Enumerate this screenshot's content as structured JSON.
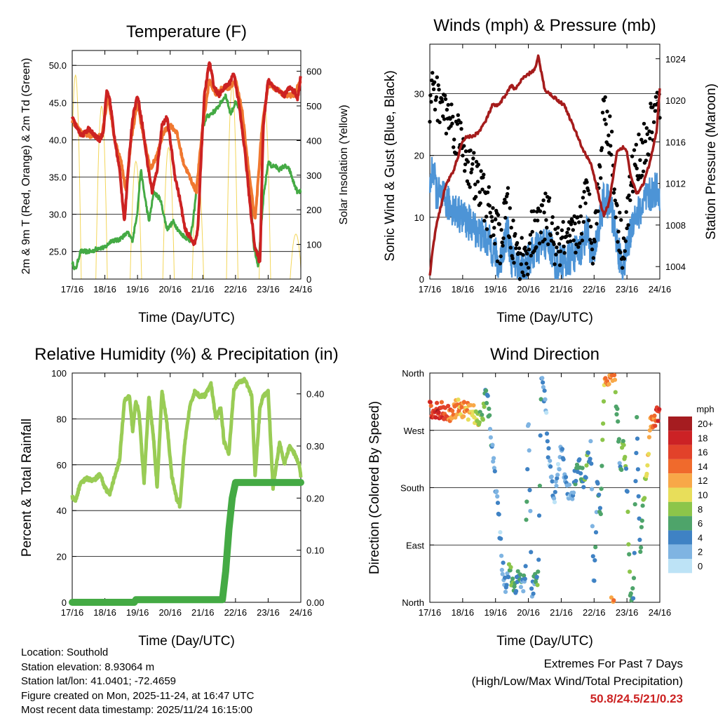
{
  "chart_data": [
    {
      "id": "temperature",
      "type": "line",
      "title": "Temperature (F)",
      "xlabel": "Time (Day/UTC)",
      "ylabel": "2m & 9m T (Red, Orange) & 2m Td (Green)",
      "ylabel_right": "Solar Insolation (Yellow)",
      "x_ticks": [
        "17/16",
        "18/16",
        "19/16",
        "20/16",
        "21/16",
        "22/16",
        "23/16",
        "24/16"
      ],
      "y_ticks": [
        "25.0",
        "30.0",
        "35.0",
        "40.0",
        "45.0",
        "50.0"
      ],
      "y_right_ticks": [
        "0",
        "100",
        "200",
        "300",
        "400",
        "500",
        "600"
      ],
      "ylim": [
        21.3,
        52
      ],
      "y_right_lim": [
        0,
        660
      ],
      "xlim": [
        0,
        7
      ],
      "series": [
        {
          "name": "2m T",
          "color": "#cc2222",
          "x": [
            0,
            0.15,
            0.3,
            0.5,
            0.7,
            0.85,
            0.95,
            1.05,
            1.15,
            1.3,
            1.45,
            1.6,
            1.75,
            1.85,
            2.0,
            2.15,
            2.3,
            2.45,
            2.6,
            2.75,
            2.9,
            3.0,
            3.15,
            3.3,
            3.45,
            3.6,
            3.75,
            3.85,
            3.95,
            4.05,
            4.2,
            4.35,
            4.5,
            4.65,
            4.8,
            4.95,
            5.1,
            5.3,
            5.45,
            5.6,
            5.75,
            5.85,
            6.0,
            6.1,
            6.2,
            6.35,
            6.5,
            6.65,
            6.8,
            6.9,
            7.0
          ],
          "values": [
            43,
            41.5,
            40.5,
            41.5,
            40.5,
            40,
            41,
            46.5,
            45.5,
            40,
            36,
            29,
            38,
            43,
            46,
            42,
            37,
            33,
            36,
            42,
            43,
            40,
            35,
            32,
            28,
            27,
            26,
            28,
            38,
            46,
            50.5,
            47,
            46,
            47,
            47.5,
            49,
            45,
            38,
            31,
            25.5,
            23.5,
            42,
            48,
            47.5,
            47,
            46.5,
            46,
            47,
            46.5,
            45.5,
            48.5
          ]
        },
        {
          "name": "9m T",
          "color": "#f07830",
          "x": [
            0,
            0.3,
            0.6,
            0.9,
            1.1,
            1.3,
            1.5,
            1.65,
            1.8,
            2.0,
            2.2,
            2.4,
            2.6,
            2.8,
            3.0,
            3.2,
            3.4,
            3.6,
            3.8,
            4.0,
            4.2,
            4.4,
            4.6,
            4.8,
            5.0,
            5.2,
            5.4,
            5.6,
            5.8,
            6.0,
            6.2,
            6.5,
            6.8,
            7.0
          ],
          "values": [
            42.5,
            41,
            40.5,
            40.5,
            46,
            40,
            37,
            33,
            40,
            45,
            40,
            36,
            38,
            41,
            42,
            41,
            37,
            35,
            33,
            42,
            48,
            46,
            47,
            47,
            48,
            44,
            36,
            29,
            41,
            47.5,
            47,
            46,
            46,
            48
          ]
        },
        {
          "name": "2m Td",
          "color": "#44aa44",
          "x": [
            0,
            0.1,
            0.25,
            0.4,
            0.6,
            0.8,
            1.0,
            1.2,
            1.4,
            1.55,
            1.7,
            1.85,
            2.0,
            2.1,
            2.2,
            2.35,
            2.5,
            2.7,
            2.9,
            3.1,
            3.3,
            3.45,
            3.6,
            3.7,
            3.8,
            3.9,
            4.0,
            4.1,
            4.25,
            4.4,
            4.55,
            4.7,
            4.85,
            5.0,
            5.15,
            5.3,
            5.45,
            5.55,
            5.7,
            5.85,
            6.0,
            6.1,
            6.2,
            6.35,
            6.5,
            6.65,
            6.8,
            6.9,
            7.0
          ],
          "values": [
            23.5,
            22.5,
            25,
            25,
            25,
            25.5,
            25.5,
            26.5,
            26.5,
            27,
            27.5,
            26.5,
            30.5,
            36,
            33,
            29,
            33,
            32,
            28,
            29,
            27.5,
            27,
            26.5,
            29,
            33,
            37,
            41.5,
            43,
            43.5,
            44,
            45,
            46,
            43.5,
            45,
            44,
            38,
            34,
            26,
            23,
            32,
            37,
            36.5,
            36.5,
            36,
            36.5,
            36,
            34,
            33,
            33
          ]
        },
        {
          "name": "Solar Insolation",
          "color": "#f3d65a",
          "axis": "right",
          "peaks_x": [
            0.1,
            0.9,
            1.95,
            2.95,
            3.85,
            4.9,
            5.9,
            6.85
          ],
          "values": [
            590,
            500,
            340,
            380,
            310,
            560,
            500,
            130
          ]
        }
      ]
    },
    {
      "id": "winds",
      "type": "scatter",
      "title": "Winds (mph) & Pressure (mb)",
      "xlabel": "Time (Day/UTC)",
      "ylabel": "Sonic Wind & Gust (Blue, Black)",
      "ylabel_right": "Station Pressure (Maroon)",
      "x_ticks": [
        "17/16",
        "18/16",
        "19/16",
        "20/16",
        "21/16",
        "22/16",
        "23/16",
        "24/16"
      ],
      "y_ticks": [
        "0",
        "10",
        "20",
        "30"
      ],
      "y_right_ticks": [
        "1004",
        "1008",
        "1012",
        "1016",
        "1020",
        "1024"
      ],
      "ylim": [
        0,
        38
      ],
      "y_right_lim": [
        1002.8,
        1025.4
      ],
      "xlim": [
        0,
        7
      ],
      "series": [
        {
          "name": "Gust",
          "color": "#000000",
          "x": [
            0,
            0.1,
            0.2,
            0.4,
            0.6,
            0.8,
            1.0,
            1.2,
            1.4,
            1.6,
            1.8,
            2.0,
            2.1,
            2.2,
            2.35,
            2.5,
            2.7,
            2.9,
            3.1,
            3.3,
            3.5,
            3.7,
            3.85,
            4.0,
            4.2,
            4.4,
            4.6,
            4.8,
            4.95,
            5.1,
            5.2,
            5.3,
            5.5,
            5.6,
            5.75,
            5.9,
            6.05,
            6.2,
            6.4,
            6.6,
            6.8,
            6.95,
            7.0
          ],
          "values": [
            26,
            32,
            29,
            28,
            26,
            24,
            22,
            18,
            16,
            14,
            11,
            8,
            6,
            7,
            12,
            6,
            4,
            3,
            7,
            8,
            10,
            9,
            4,
            6,
            5,
            7,
            9,
            14,
            6,
            12,
            20,
            28,
            23,
            16,
            8,
            5,
            12,
            18,
            20,
            22,
            26,
            28,
            29
          ]
        },
        {
          "name": "Wind",
          "color": "#4d94d6",
          "x": [
            0,
            0.1,
            0.2,
            0.4,
            0.6,
            0.8,
            1.0,
            1.2,
            1.4,
            1.6,
            1.8,
            2.0,
            2.1,
            2.2,
            2.35,
            2.5,
            2.7,
            2.9,
            3.1,
            3.3,
            3.5,
            3.7,
            3.85,
            4.0,
            4.2,
            4.4,
            4.6,
            4.8,
            4.95,
            5.1,
            5.2,
            5.3,
            5.5,
            5.6,
            5.75,
            5.9,
            6.05,
            6.2,
            6.4,
            6.6,
            6.8,
            6.95,
            7.0
          ],
          "values": [
            15,
            18,
            14,
            13,
            12,
            11,
            10,
            9,
            8,
            7,
            6,
            4,
            2,
            4,
            8,
            3,
            2,
            2,
            4,
            5,
            6,
            5,
            2,
            3,
            3,
            4,
            5,
            8,
            3,
            7,
            10,
            13,
            12,
            9,
            4,
            2,
            6,
            10,
            11,
            13,
            14,
            15,
            12
          ]
        },
        {
          "name": "Station Pressure",
          "color": "#a51c1c",
          "axis": "right",
          "x": [
            0,
            0.1,
            0.2,
            0.35,
            0.5,
            0.7,
            0.9,
            1.0,
            1.1,
            1.3,
            1.5,
            1.7,
            1.9,
            2.1,
            2.3,
            2.5,
            2.6,
            2.8,
            3.0,
            3.2,
            3.3,
            3.5,
            3.7,
            3.9,
            4.1,
            4.3,
            4.5,
            4.7,
            4.9,
            5.05,
            5.2,
            5.3,
            5.45,
            5.6,
            5.7,
            5.9,
            6.0,
            6.1,
            6.3,
            6.5,
            6.7,
            6.9,
            7.0
          ],
          "values": [
            1003,
            1006,
            1008,
            1010,
            1012,
            1013,
            1015,
            1016,
            1016.5,
            1016.5,
            1017,
            1018,
            1019.5,
            1019.5,
            1020.5,
            1021.5,
            1021,
            1022,
            1022.5,
            1023,
            1024.2,
            1021,
            1020.5,
            1020,
            1019.5,
            1018,
            1016.5,
            1015,
            1014,
            1012,
            1010,
            1009,
            1010,
            1013,
            1015,
            1015.5,
            1015,
            1013,
            1011,
            1012,
            1014,
            1017,
            1021
          ]
        }
      ]
    },
    {
      "id": "humidity",
      "type": "line",
      "title": "Relative Humidity (%) & Precipitation (in)",
      "xlabel": "Time (Day/UTC)",
      "ylabel": "Percent & Total Rainfall",
      "x_ticks": [
        "17/16",
        "18/16",
        "19/16",
        "20/16",
        "21/16",
        "22/16",
        "23/16",
        "24/16"
      ],
      "y_ticks": [
        "0",
        "20",
        "40",
        "60",
        "80",
        "100"
      ],
      "y_right_ticks": [
        "0.00",
        "0.10",
        "0.20",
        "0.30",
        "0.40"
      ],
      "ylim": [
        0,
        100
      ],
      "y_right_lim": [
        0,
        0.44
      ],
      "xlim": [
        0,
        7
      ],
      "series": [
        {
          "name": "Relative Humidity",
          "color": "#99cc55",
          "x": [
            0,
            0.1,
            0.25,
            0.45,
            0.65,
            0.85,
            1.0,
            1.15,
            1.3,
            1.45,
            1.6,
            1.75,
            1.85,
            1.95,
            2.05,
            2.2,
            2.35,
            2.5,
            2.6,
            2.75,
            2.9,
            3.05,
            3.2,
            3.3,
            3.45,
            3.6,
            3.75,
            3.9,
            4.05,
            4.25,
            4.4,
            4.55,
            4.65,
            4.8,
            4.95,
            5.1,
            5.3,
            5.5,
            5.6,
            5.75,
            5.85,
            6.0,
            6.15,
            6.35,
            6.5,
            6.65,
            6.8,
            6.95,
            7.0
          ],
          "values": [
            46,
            44,
            52,
            54,
            53,
            56,
            50,
            47,
            55,
            62,
            88,
            90,
            75,
            88,
            82,
            52,
            90,
            70,
            50,
            92,
            78,
            55,
            45,
            42,
            70,
            85,
            92,
            90,
            90,
            95,
            80,
            85,
            70,
            65,
            93,
            96,
            97,
            90,
            55,
            85,
            90,
            92,
            50,
            70,
            60,
            68,
            65,
            60,
            55
          ]
        },
        {
          "name": "Total Precipitation",
          "color": "#44aa44",
          "axis": "right",
          "x": [
            0,
            1.9,
            1.95,
            4.6,
            4.7,
            4.8,
            4.9,
            5.0,
            7.0
          ],
          "values": [
            0,
            0,
            0.005,
            0.005,
            0.06,
            0.14,
            0.2,
            0.23,
            0.23
          ]
        }
      ]
    },
    {
      "id": "direction",
      "type": "scatter",
      "title": "Wind Direction",
      "xlabel": "Time (Day/UTC)",
      "ylabel": "Direction (Colored By Speed)",
      "x_ticks": [
        "17/16",
        "18/16",
        "19/16",
        "20/16",
        "21/16",
        "22/16",
        "23/16",
        "24/16"
      ],
      "y_ticks": [
        "North",
        "East",
        "South",
        "West",
        "North"
      ],
      "ylim": [
        0,
        360
      ],
      "xlim": [
        0,
        7
      ],
      "legend": {
        "title": "mph",
        "labels": [
          "20+",
          "18",
          "16",
          "14",
          "12",
          "10",
          "8",
          "6",
          "4",
          "2",
          "0"
        ],
        "colors": [
          "#a51c20",
          "#cc2225",
          "#e2422a",
          "#f06a2c",
          "#f8a848",
          "#e8de5a",
          "#8cc54a",
          "#4ea46a",
          "#3f82c4",
          "#7fb4e2",
          "#bde3f6"
        ]
      },
      "series": [
        {
          "name": "Direction",
          "x": [
            0,
            0.2,
            0.4,
            0.6,
            0.8,
            1.0,
            1.1,
            1.3,
            1.5,
            1.6,
            1.7,
            1.8,
            1.9,
            2.0,
            2.1,
            2.2,
            2.3,
            2.4,
            2.5,
            2.6,
            2.7,
            2.8,
            2.9,
            3.0,
            3.1,
            3.2,
            3.3,
            3.4,
            3.5,
            3.6,
            3.7,
            3.8,
            3.9,
            4.0,
            4.1,
            4.2,
            4.3,
            4.4,
            4.5,
            4.6,
            4.7,
            4.8,
            4.9,
            5.0,
            5.1,
            5.2,
            5.3,
            5.4,
            5.5,
            5.6,
            5.7,
            5.8,
            5.9,
            6.0,
            6.1,
            6.2,
            6.3,
            6.4,
            6.5,
            6.6,
            6.7,
            6.8,
            6.9,
            7.0
          ],
          "direction_deg": [
            300,
            300,
            302,
            298,
            303,
            305,
            300,
            297,
            293,
            285,
            330,
            300,
            240,
            180,
            130,
            60,
            25,
            50,
            40,
            20,
            45,
            35,
            25,
            300,
            15,
            35,
            40,
            355,
            320,
            240,
            190,
            170,
            210,
            240,
            200,
            175,
            165,
            190,
            215,
            205,
            185,
            230,
            240,
            12,
            200,
            125,
            340,
            353,
            350,
            360,
            300,
            210,
            250,
            180,
            20,
            10,
            300,
            60,
            160,
            205,
            275,
            285,
            290,
            310
          ],
          "speed": [
            16,
            18,
            16,
            14,
            13,
            12,
            12,
            11,
            9,
            8,
            5,
            4,
            3,
            3,
            3,
            2,
            4,
            5,
            7,
            5,
            4,
            4,
            4,
            3,
            3,
            5,
            6,
            4,
            3,
            2,
            3,
            2,
            2,
            3,
            3,
            2,
            2,
            4,
            5,
            5,
            5,
            6,
            3,
            3,
            4,
            5,
            10,
            14,
            12,
            13,
            6,
            3,
            8,
            5,
            7,
            6,
            4,
            5,
            8,
            10,
            12,
            14,
            16,
            17
          ]
        }
      ]
    }
  ],
  "footer": {
    "location": "Location: Southold",
    "elevation": "Station elevation: 8.93064 m",
    "latlon": "Station lat/lon: 41.0401; -72.4659",
    "created": "Figure created on Mon, 2025-11-24, at 16:47 UTC",
    "recent": "Most recent data timestamp: 2025/11/24 16:15:00"
  },
  "extremes": {
    "title": "Extremes For Past 7 Days",
    "subtitle": "(High/Low/Max Wind/Total Precipitation)",
    "values": "50.8/24.5/21/0.23",
    "value_color": "#cc2222"
  }
}
